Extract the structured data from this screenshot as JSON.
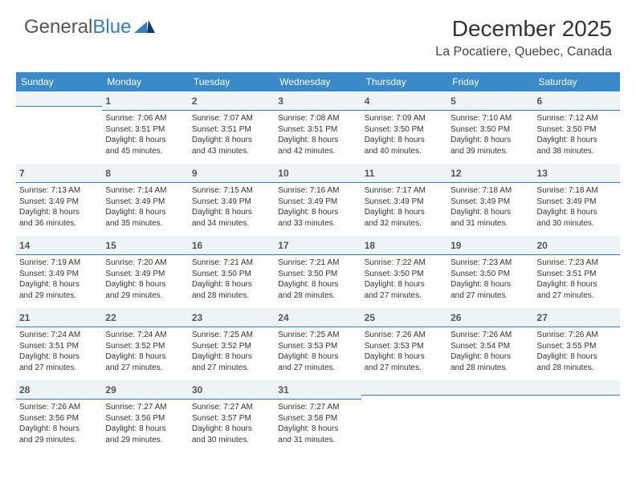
{
  "brand": {
    "part1": "General",
    "part2": "Blue"
  },
  "title": "December 2025",
  "location": "La Pocatiere, Quebec, Canada",
  "colors": {
    "header_bg": "#3a89c9",
    "rule": "#2f7fc5",
    "daybg": "#eef3f6"
  },
  "dow": [
    "Sunday",
    "Monday",
    "Tuesday",
    "Wednesday",
    "Thursday",
    "Friday",
    "Saturday"
  ],
  "weeks": [
    [
      null,
      {
        "n": "1",
        "sr": "Sunrise: 7:06 AM",
        "ss": "Sunset: 3:51 PM",
        "d1": "Daylight: 8 hours",
        "d2": "and 45 minutes."
      },
      {
        "n": "2",
        "sr": "Sunrise: 7:07 AM",
        "ss": "Sunset: 3:51 PM",
        "d1": "Daylight: 8 hours",
        "d2": "and 43 minutes."
      },
      {
        "n": "3",
        "sr": "Sunrise: 7:08 AM",
        "ss": "Sunset: 3:51 PM",
        "d1": "Daylight: 8 hours",
        "d2": "and 42 minutes."
      },
      {
        "n": "4",
        "sr": "Sunrise: 7:09 AM",
        "ss": "Sunset: 3:50 PM",
        "d1": "Daylight: 8 hours",
        "d2": "and 40 minutes."
      },
      {
        "n": "5",
        "sr": "Sunrise: 7:10 AM",
        "ss": "Sunset: 3:50 PM",
        "d1": "Daylight: 8 hours",
        "d2": "and 39 minutes."
      },
      {
        "n": "6",
        "sr": "Sunrise: 7:12 AM",
        "ss": "Sunset: 3:50 PM",
        "d1": "Daylight: 8 hours",
        "d2": "and 38 minutes."
      }
    ],
    [
      {
        "n": "7",
        "sr": "Sunrise: 7:13 AM",
        "ss": "Sunset: 3:49 PM",
        "d1": "Daylight: 8 hours",
        "d2": "and 36 minutes."
      },
      {
        "n": "8",
        "sr": "Sunrise: 7:14 AM",
        "ss": "Sunset: 3:49 PM",
        "d1": "Daylight: 8 hours",
        "d2": "and 35 minutes."
      },
      {
        "n": "9",
        "sr": "Sunrise: 7:15 AM",
        "ss": "Sunset: 3:49 PM",
        "d1": "Daylight: 8 hours",
        "d2": "and 34 minutes."
      },
      {
        "n": "10",
        "sr": "Sunrise: 7:16 AM",
        "ss": "Sunset: 3:49 PM",
        "d1": "Daylight: 8 hours",
        "d2": "and 33 minutes."
      },
      {
        "n": "11",
        "sr": "Sunrise: 7:17 AM",
        "ss": "Sunset: 3:49 PM",
        "d1": "Daylight: 8 hours",
        "d2": "and 32 minutes."
      },
      {
        "n": "12",
        "sr": "Sunrise: 7:18 AM",
        "ss": "Sunset: 3:49 PM",
        "d1": "Daylight: 8 hours",
        "d2": "and 31 minutes."
      },
      {
        "n": "13",
        "sr": "Sunrise: 7:18 AM",
        "ss": "Sunset: 3:49 PM",
        "d1": "Daylight: 8 hours",
        "d2": "and 30 minutes."
      }
    ],
    [
      {
        "n": "14",
        "sr": "Sunrise: 7:19 AM",
        "ss": "Sunset: 3:49 PM",
        "d1": "Daylight: 8 hours",
        "d2": "and 29 minutes."
      },
      {
        "n": "15",
        "sr": "Sunrise: 7:20 AM",
        "ss": "Sunset: 3:49 PM",
        "d1": "Daylight: 8 hours",
        "d2": "and 29 minutes."
      },
      {
        "n": "16",
        "sr": "Sunrise: 7:21 AM",
        "ss": "Sunset: 3:50 PM",
        "d1": "Daylight: 8 hours",
        "d2": "and 28 minutes."
      },
      {
        "n": "17",
        "sr": "Sunrise: 7:21 AM",
        "ss": "Sunset: 3:50 PM",
        "d1": "Daylight: 8 hours",
        "d2": "and 28 minutes."
      },
      {
        "n": "18",
        "sr": "Sunrise: 7:22 AM",
        "ss": "Sunset: 3:50 PM",
        "d1": "Daylight: 8 hours",
        "d2": "and 27 minutes."
      },
      {
        "n": "19",
        "sr": "Sunrise: 7:23 AM",
        "ss": "Sunset: 3:50 PM",
        "d1": "Daylight: 8 hours",
        "d2": "and 27 minutes."
      },
      {
        "n": "20",
        "sr": "Sunrise: 7:23 AM",
        "ss": "Sunset: 3:51 PM",
        "d1": "Daylight: 8 hours",
        "d2": "and 27 minutes."
      }
    ],
    [
      {
        "n": "21",
        "sr": "Sunrise: 7:24 AM",
        "ss": "Sunset: 3:51 PM",
        "d1": "Daylight: 8 hours",
        "d2": "and 27 minutes."
      },
      {
        "n": "22",
        "sr": "Sunrise: 7:24 AM",
        "ss": "Sunset: 3:52 PM",
        "d1": "Daylight: 8 hours",
        "d2": "and 27 minutes."
      },
      {
        "n": "23",
        "sr": "Sunrise: 7:25 AM",
        "ss": "Sunset: 3:52 PM",
        "d1": "Daylight: 8 hours",
        "d2": "and 27 minutes."
      },
      {
        "n": "24",
        "sr": "Sunrise: 7:25 AM",
        "ss": "Sunset: 3:53 PM",
        "d1": "Daylight: 8 hours",
        "d2": "and 27 minutes."
      },
      {
        "n": "25",
        "sr": "Sunrise: 7:26 AM",
        "ss": "Sunset: 3:53 PM",
        "d1": "Daylight: 8 hours",
        "d2": "and 27 minutes."
      },
      {
        "n": "26",
        "sr": "Sunrise: 7:26 AM",
        "ss": "Sunset: 3:54 PM",
        "d1": "Daylight: 8 hours",
        "d2": "and 28 minutes."
      },
      {
        "n": "27",
        "sr": "Sunrise: 7:26 AM",
        "ss": "Sunset: 3:55 PM",
        "d1": "Daylight: 8 hours",
        "d2": "and 28 minutes."
      }
    ],
    [
      {
        "n": "28",
        "sr": "Sunrise: 7:26 AM",
        "ss": "Sunset: 3:56 PM",
        "d1": "Daylight: 8 hours",
        "d2": "and 29 minutes."
      },
      {
        "n": "29",
        "sr": "Sunrise: 7:27 AM",
        "ss": "Sunset: 3:56 PM",
        "d1": "Daylight: 8 hours",
        "d2": "and 29 minutes."
      },
      {
        "n": "30",
        "sr": "Sunrise: 7:27 AM",
        "ss": "Sunset: 3:57 PM",
        "d1": "Daylight: 8 hours",
        "d2": "and 30 minutes."
      },
      {
        "n": "31",
        "sr": "Sunrise: 7:27 AM",
        "ss": "Sunset: 3:58 PM",
        "d1": "Daylight: 8 hours",
        "d2": "and 31 minutes."
      },
      null,
      null,
      null
    ]
  ]
}
